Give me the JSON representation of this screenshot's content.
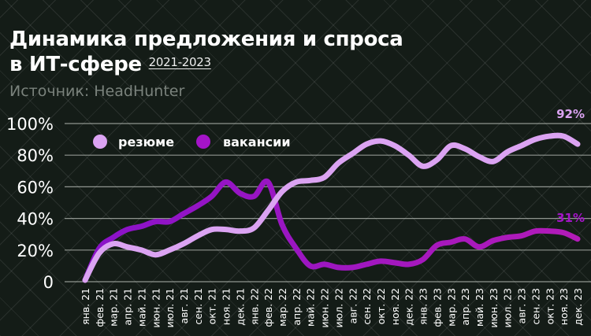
{
  "title_line1": "Динамика предложения и спроса",
  "title_line2": "в ИТ-сфере",
  "title_years": "2021-2023",
  "source": "Источник: HeadHunter",
  "chart_data": {
    "type": "line",
    "title": "Динамика предложения и спроса в ИТ-сфере 2021-2023",
    "ylim": [
      0,
      100
    ],
    "yticks": [
      "0",
      "20%",
      "40%",
      "60%",
      "80%",
      "100%"
    ],
    "grid": true,
    "legend_placement": "top-left",
    "categories": [
      "янв. 21",
      "фев. 21",
      "мар. 21",
      "апр. 21",
      "май. 21",
      "июн. 21",
      "июл. 21",
      "авг. 21",
      "сен. 21",
      "окт. 21",
      "ноя. 21",
      "дек. 21",
      "янв. 22",
      "фев. 22",
      "мар. 22",
      "апр. 22",
      "май. 22",
      "июн. 22",
      "июл. 22",
      "авг. 22",
      "сен. 22",
      "окт. 22",
      "ноя. 22",
      "дек. 22",
      "янв. 23",
      "фев. 23",
      "мар. 23",
      "апр. 23",
      "май. 23",
      "июн. 23",
      "июл. 23",
      "авг. 23",
      "сен. 23",
      "окт. 23",
      "ноя. 23",
      "дек. 23"
    ],
    "series": [
      {
        "name": "резюме",
        "color": "#dba3f2",
        "values": [
          1,
          18,
          24,
          22,
          20,
          17,
          20,
          24,
          29,
          33,
          33,
          32,
          34,
          45,
          57,
          63,
          64,
          66,
          75,
          81,
          87,
          89,
          86,
          80,
          73,
          77,
          86,
          84,
          79,
          76,
          82,
          86,
          90,
          92,
          92,
          87
        ],
        "annotation": "92%"
      },
      {
        "name": "вакансии",
        "color": "#a414c8",
        "values": [
          1,
          21,
          28,
          33,
          35,
          38,
          38,
          43,
          48,
          54,
          63,
          56,
          54,
          63,
          36,
          21,
          10,
          11,
          9,
          9,
          11,
          13,
          12,
          11,
          14,
          23,
          25,
          27,
          22,
          26,
          28,
          29,
          32,
          32,
          31,
          27
        ],
        "annotation": "31%"
      }
    ]
  }
}
